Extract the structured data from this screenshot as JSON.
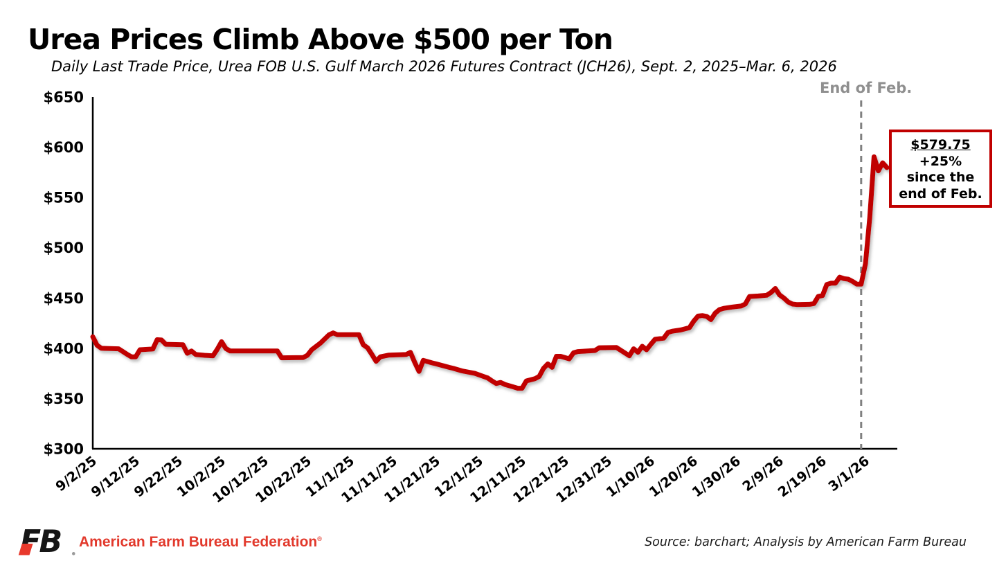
{
  "title": "Urea Prices Climb Above $500 per Ton",
  "subtitle": "Daily Last Trade Price, Urea FOB U.S. Gulf March 2026 Futures Contract (JCH26), Sept. 2, 2025–Mar. 6, 2026",
  "end_of_feb_label": "End of Feb.",
  "callout": {
    "price": "$579.75",
    "line2": "+25%",
    "line3": "since the",
    "line4": "end of Feb."
  },
  "footer": {
    "logo_monogram": "FB",
    "org_name": "American Farm Bureau Federation",
    "reg_mark": "®",
    "source": "Source: barchart; Analysis by American Farm Bureau"
  },
  "colors": {
    "line": "#c00000",
    "line_shadow": "#909090",
    "callout_border": "#c00000",
    "dashed_line": "#808080",
    "gray_label": "#8f8f8f",
    "axis": "#000000",
    "brand_red": "#e2392c",
    "logo_black": "#161616"
  },
  "chart_data": {
    "type": "line",
    "title": "Urea Prices Climb Above $500 per Ton",
    "ylabel": "",
    "xlabel": "",
    "ylim": [
      300,
      650
    ],
    "y_ticks": [
      300,
      350,
      400,
      450,
      500,
      550,
      600,
      650
    ],
    "y_tick_prefix": "$",
    "x_tick_labels": [
      "9/2/25",
      "9/12/25",
      "9/22/25",
      "10/2/25",
      "10/12/25",
      "10/22/25",
      "11/1/25",
      "11/11/25",
      "11/21/25",
      "12/1/25",
      "12/11/25",
      "12/21/25",
      "12/31/25",
      "1/10/26",
      "1/20/26",
      "1/30/26",
      "2/9/26",
      "2/19/26",
      "3/1/26"
    ],
    "x_start_date": "9/2/25",
    "x_end_date": "3/6/26",
    "reference_line_date": "2/28/26",
    "reference_line_label": "End of Feb.",
    "grid": false,
    "legend": false,
    "last_price": 579.75,
    "pct_change_since_end_of_feb": "+25%",
    "points": [
      [
        "9/2/25",
        411.5
      ],
      [
        "9/3/25",
        403
      ],
      [
        "9/4/25",
        400
      ],
      [
        "9/8/25",
        399.5
      ],
      [
        "9/10/25",
        394
      ],
      [
        "9/11/25",
        391.5
      ],
      [
        "9/12/25",
        391.5
      ],
      [
        "9/13/25",
        398.5
      ],
      [
        "9/16/25",
        399.25
      ],
      [
        "9/17/25",
        408.5
      ],
      [
        "9/18/25",
        408.25
      ],
      [
        "9/19/25",
        404
      ],
      [
        "9/23/25",
        403.5
      ],
      [
        "9/24/25",
        395
      ],
      [
        "9/25/25",
        397.25
      ],
      [
        "9/26/25",
        393.75
      ],
      [
        "9/28/25",
        393
      ],
      [
        "9/30/25",
        392.5
      ],
      [
        "10/1/25",
        399
      ],
      [
        "10/2/25",
        406.5
      ],
      [
        "10/3/25",
        399.75
      ],
      [
        "10/4/25",
        397.25
      ],
      [
        "10/15/25",
        397.25
      ],
      [
        "10/16/25",
        390.5
      ],
      [
        "10/21/25",
        390.75
      ],
      [
        "10/22/25",
        393
      ],
      [
        "10/23/25",
        398.5
      ],
      [
        "10/25/25",
        405
      ],
      [
        "10/27/25",
        413.25
      ],
      [
        "10/28/25",
        415.25
      ],
      [
        "10/29/25",
        413.5
      ],
      [
        "11/3/25",
        413.5
      ],
      [
        "11/4/25",
        403.5
      ],
      [
        "11/5/25",
        400.5
      ],
      [
        "11/6/25",
        394
      ],
      [
        "11/7/25",
        387
      ],
      [
        "11/8/25",
        391.5
      ],
      [
        "11/10/25",
        393.25
      ],
      [
        "11/14/25",
        393.75
      ],
      [
        "11/15/25",
        396
      ],
      [
        "11/16/25",
        386
      ],
      [
        "11/17/25",
        377
      ],
      [
        "11/18/25",
        388
      ],
      [
        "11/20/25",
        385.5
      ],
      [
        "11/21/25",
        384.5
      ],
      [
        "11/24/25",
        381
      ],
      [
        "11/25/25",
        380
      ],
      [
        "11/27/25",
        377.5
      ],
      [
        "11/30/25",
        375
      ],
      [
        "12/2/25",
        372
      ],
      [
        "12/3/25",
        370.5
      ],
      [
        "12/4/25",
        367.5
      ],
      [
        "12/5/25",
        365
      ],
      [
        "12/6/25",
        366
      ],
      [
        "12/7/25",
        364
      ],
      [
        "12/9/25",
        361.5
      ],
      [
        "12/10/25",
        360.25
      ],
      [
        "12/11/25",
        360.25
      ],
      [
        "12/12/25",
        367.5
      ],
      [
        "12/14/25",
        369.75
      ],
      [
        "12/15/25",
        372
      ],
      [
        "12/16/25",
        380
      ],
      [
        "12/17/25",
        384.5
      ],
      [
        "12/18/25",
        381
      ],
      [
        "12/19/25",
        392
      ],
      [
        "12/20/25",
        392
      ],
      [
        "12/22/25",
        389.5
      ],
      [
        "12/23/25",
        395.5
      ],
      [
        "12/24/25",
        396.75
      ],
      [
        "12/28/25",
        397.75
      ],
      [
        "12/29/25",
        400.5
      ],
      [
        "1/2/26",
        400.75
      ],
      [
        "1/5/26",
        392.5
      ],
      [
        "1/6/26",
        399.5
      ],
      [
        "1/7/26",
        396
      ],
      [
        "1/8/26",
        402
      ],
      [
        "1/9/26",
        398.5
      ],
      [
        "1/10/26",
        404
      ],
      [
        "1/11/26",
        409
      ],
      [
        "1/13/26",
        410
      ],
      [
        "1/14/26",
        415.75
      ],
      [
        "1/15/26",
        417
      ],
      [
        "1/17/26",
        418.25
      ],
      [
        "1/19/26",
        420.5
      ],
      [
        "1/20/26",
        427
      ],
      [
        "1/21/26",
        432
      ],
      [
        "1/22/26",
        432.5
      ],
      [
        "1/23/26",
        431.75
      ],
      [
        "1/24/26",
        428.5
      ],
      [
        "1/25/26",
        435
      ],
      [
        "1/26/26",
        438.5
      ],
      [
        "1/27/26",
        439.75
      ],
      [
        "1/29/26",
        441
      ],
      [
        "1/31/26",
        442
      ],
      [
        "2/1/26",
        444
      ],
      [
        "2/2/26",
        451.5
      ],
      [
        "2/4/26",
        452
      ],
      [
        "2/6/26",
        452.75
      ],
      [
        "2/7/26",
        455.5
      ],
      [
        "2/8/26",
        459.5
      ],
      [
        "2/9/26",
        453
      ],
      [
        "2/10/26",
        450
      ],
      [
        "2/11/26",
        446
      ],
      [
        "2/12/26",
        444
      ],
      [
        "2/13/26",
        443.5
      ],
      [
        "2/16/26",
        443.75
      ],
      [
        "2/17/26",
        444.5
      ],
      [
        "2/18/26",
        451.5
      ],
      [
        "2/19/26",
        452.5
      ],
      [
        "2/20/26",
        463.5
      ],
      [
        "2/21/26",
        464.75
      ],
      [
        "2/22/26",
        464.75
      ],
      [
        "2/23/26",
        470.75
      ],
      [
        "2/24/26",
        469.25
      ],
      [
        "2/25/26",
        468.75
      ],
      [
        "2/26/26",
        466.5
      ],
      [
        "2/27/26",
        463.8
      ],
      [
        "2/28/26",
        463.8
      ],
      [
        "3/1/26",
        484
      ],
      [
        "3/2/26",
        530
      ],
      [
        "3/3/26",
        590.5
      ],
      [
        "3/4/26",
        576.5
      ],
      [
        "3/5/26",
        584.5
      ],
      [
        "3/6/26",
        579.75
      ]
    ]
  }
}
